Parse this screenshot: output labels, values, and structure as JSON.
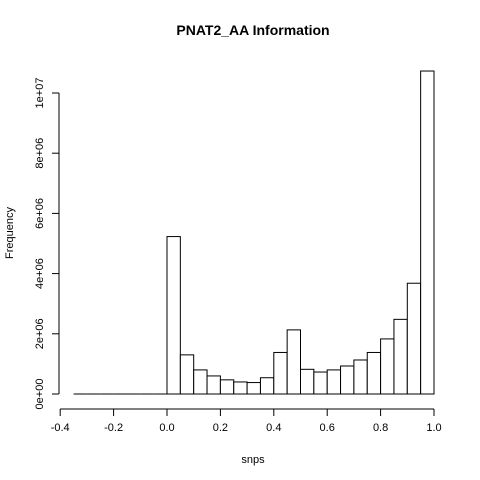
{
  "chart_data": {
    "type": "bar",
    "title": "PNAT2_AA Information",
    "xlabel": "snps",
    "ylabel": "Frequency",
    "xlim": [
      -0.35,
      1.0
    ],
    "ylim": [
      0,
      10700000
    ],
    "x_ticks": [
      {
        "value": -0.4,
        "label": "-0.4"
      },
      {
        "value": -0.2,
        "label": "-0.2"
      },
      {
        "value": 0.0,
        "label": "0.0"
      },
      {
        "value": 0.2,
        "label": "0.2"
      },
      {
        "value": 0.4,
        "label": "0.4"
      },
      {
        "value": 0.6,
        "label": "0.6"
      },
      {
        "value": 0.8,
        "label": "0.8"
      },
      {
        "value": 1.0,
        "label": "1.0"
      }
    ],
    "y_ticks": [
      {
        "value": 0,
        "label": "0e+00"
      },
      {
        "value": 2000000,
        "label": "2e+06"
      },
      {
        "value": 4000000,
        "label": "4e+06"
      },
      {
        "value": 6000000,
        "label": "6e+06"
      },
      {
        "value": 8000000,
        "label": "8e+06"
      },
      {
        "value": 10000000,
        "label": "1e+07"
      }
    ],
    "bin_width": 0.05,
    "bins": [
      {
        "start": -0.35,
        "value": 0
      },
      {
        "start": -0.3,
        "value": 0
      },
      {
        "start": -0.25,
        "value": 0
      },
      {
        "start": -0.2,
        "value": 0
      },
      {
        "start": -0.15,
        "value": 0
      },
      {
        "start": -0.1,
        "value": 0
      },
      {
        "start": -0.05,
        "value": 0
      },
      {
        "start": 0.0,
        "value": 5230000
      },
      {
        "start": 0.05,
        "value": 1300000
      },
      {
        "start": 0.1,
        "value": 800000
      },
      {
        "start": 0.15,
        "value": 600000
      },
      {
        "start": 0.2,
        "value": 470000
      },
      {
        "start": 0.25,
        "value": 400000
      },
      {
        "start": 0.3,
        "value": 380000
      },
      {
        "start": 0.35,
        "value": 540000
      },
      {
        "start": 0.4,
        "value": 1380000
      },
      {
        "start": 0.45,
        "value": 2130000
      },
      {
        "start": 0.5,
        "value": 820000
      },
      {
        "start": 0.55,
        "value": 730000
      },
      {
        "start": 0.6,
        "value": 800000
      },
      {
        "start": 0.65,
        "value": 930000
      },
      {
        "start": 0.7,
        "value": 1130000
      },
      {
        "start": 0.75,
        "value": 1380000
      },
      {
        "start": 0.8,
        "value": 1830000
      },
      {
        "start": 0.85,
        "value": 2480000
      },
      {
        "start": 0.9,
        "value": 3680000
      },
      {
        "start": 0.95,
        "value": 10730000
      }
    ],
    "grid": false,
    "legend": "none"
  }
}
